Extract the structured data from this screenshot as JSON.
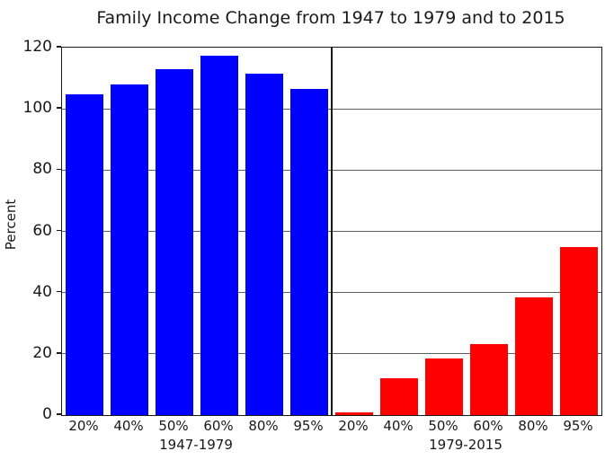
{
  "figure": {
    "background": "#ffffff",
    "spine_color": "#1a1a1a",
    "grid_color": "#5f5f5f"
  },
  "chart_data": {
    "type": "bar",
    "title": "Family Income Change from 1947 to 1979 and to 2015",
    "xlabel": "",
    "ylabel": "Percent",
    "ylim": [
      0,
      120
    ],
    "yticks": [
      0,
      20,
      40,
      60,
      80,
      100,
      120
    ],
    "grid": true,
    "legend_position": "none",
    "categories": [
      "20%",
      "40%",
      "50%",
      "60%",
      "80%",
      "95%"
    ],
    "series": [
      {
        "name": "1947-1979",
        "color": "#0000ff",
        "values": [
          104.8,
          108.0,
          113.1,
          117.5,
          111.5,
          106.4
        ]
      },
      {
        "name": "1979-2015",
        "color": "#ff0000",
        "values": [
          1.0,
          12.1,
          18.4,
          23.2,
          38.5,
          54.9
        ]
      }
    ]
  }
}
